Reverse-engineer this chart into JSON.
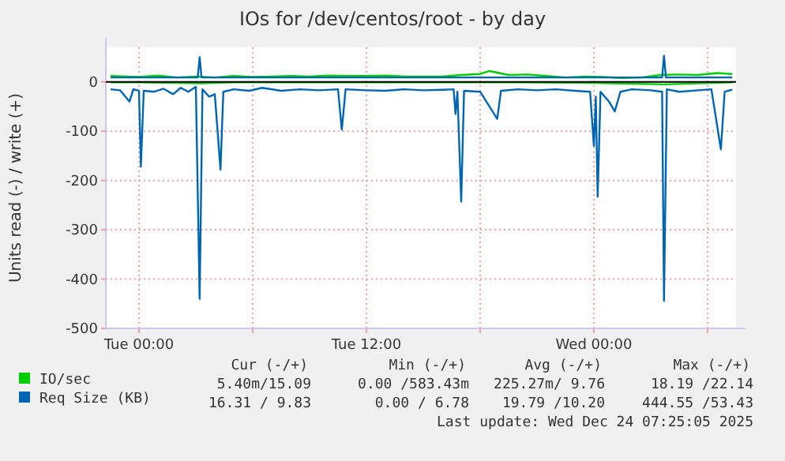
{
  "chart_data": {
    "type": "line",
    "title": "IOs for /dev/centos/root - by day",
    "ylabel": "Units read (-) / write (+)",
    "xlim": [
      "2025-12-22T22:15",
      "2025-12-24T07:30"
    ],
    "xticks": [
      {
        "value": "2025-12-23T00:00",
        "label": "Tue 00:00"
      },
      {
        "value": "2025-12-23T06:00",
        "label": null
      },
      {
        "value": "2025-12-23T12:00",
        "label": "Tue 12:00"
      },
      {
        "value": "2025-12-23T18:00",
        "label": null
      },
      {
        "value": "2025-12-24T00:00",
        "label": "Wed 00:00"
      },
      {
        "value": "2025-12-24T06:00",
        "label": null
      }
    ],
    "ylim": [
      -500,
      70
    ],
    "yticks": [
      -500,
      -400,
      -300,
      -200,
      -100,
      0
    ],
    "grid": true,
    "legend": "bottom",
    "marker": "none",
    "line_style": "solid",
    "ref_lines": [
      {
        "axis": "y",
        "value": 0,
        "color": "#000000"
      }
    ],
    "series": [
      {
        "color": "#00cc00",
        "x": [
          "2025-12-22T22:30",
          "2025-12-23T00:00",
          "2025-12-23T03:12",
          "2025-12-23T05:00",
          "2025-12-23T08:00",
          "2025-12-23T12:00",
          "2025-12-23T16:00",
          "2025-12-23T20:00",
          "2025-12-24T00:00",
          "2025-12-24T03:42",
          "2025-12-24T07:18"
        ],
        "values": [
          -1,
          -1,
          -3,
          -1,
          -1,
          -1,
          -1,
          -1,
          -2,
          -5,
          -1
        ]
      },
      {
        "name": "IO/sec",
        "color": "#00cc00",
        "x": [
          "2025-12-22T22:30",
          "2025-12-23T00:00",
          "2025-12-23T01:00",
          "2025-12-23T02:00",
          "2025-12-23T03:00",
          "2025-12-23T04:00",
          "2025-12-23T05:00",
          "2025-12-23T06:00",
          "2025-12-23T07:00",
          "2025-12-23T08:00",
          "2025-12-23T09:00",
          "2025-12-23T10:00",
          "2025-12-23T11:00",
          "2025-12-23T12:00",
          "2025-12-23T13:00",
          "2025-12-23T14:00",
          "2025-12-23T15:00",
          "2025-12-23T16:00",
          "2025-12-23T17:00",
          "2025-12-23T18:00",
          "2025-12-23T18:30",
          "2025-12-23T19:30",
          "2025-12-23T20:30",
          "2025-12-23T21:30",
          "2025-12-23T22:30",
          "2025-12-23T23:30",
          "2025-12-24T00:30",
          "2025-12-24T01:30",
          "2025-12-24T02:30",
          "2025-12-24T03:30",
          "2025-12-24T04:30",
          "2025-12-24T05:30",
          "2025-12-24T06:30",
          "2025-12-24T07:18"
        ],
        "values": [
          12,
          10,
          13,
          9,
          11,
          9,
          12,
          10,
          11,
          12,
          11,
          13,
          12,
          12,
          13,
          11,
          11,
          11,
          14,
          16,
          22,
          14,
          15,
          12,
          9,
          11,
          10,
          8,
          9,
          14,
          15,
          14,
          18,
          16
        ]
      },
      {
        "color": "#0066b3",
        "x": [
          "2025-12-22T22:30",
          "2025-12-22T23:00",
          "2025-12-22T23:30",
          "2025-12-22T23:42",
          "2025-12-23T00:00",
          "2025-12-23T00:06",
          "2025-12-23T00:15",
          "2025-12-23T00:48",
          "2025-12-23T01:18",
          "2025-12-23T01:48",
          "2025-12-23T02:12",
          "2025-12-23T02:36",
          "2025-12-23T03:00",
          "2025-12-23T03:12",
          "2025-12-23T03:21",
          "2025-12-23T03:42",
          "2025-12-23T04:00",
          "2025-12-23T04:18",
          "2025-12-23T04:27",
          "2025-12-23T05:00",
          "2025-12-23T05:48",
          "2025-12-23T06:30",
          "2025-12-23T07:30",
          "2025-12-23T08:30",
          "2025-12-23T09:30",
          "2025-12-23T10:30",
          "2025-12-23T10:42",
          "2025-12-23T10:54",
          "2025-12-23T12:00",
          "2025-12-23T13:00",
          "2025-12-23T14:00",
          "2025-12-23T15:00",
          "2025-12-23T16:00",
          "2025-12-23T16:36",
          "2025-12-23T16:42",
          "2025-12-23T16:48",
          "2025-12-23T17:00",
          "2025-12-23T17:09",
          "2025-12-23T18:00",
          "2025-12-23T18:54",
          "2025-12-23T19:06",
          "2025-12-23T20:00",
          "2025-12-23T21:00",
          "2025-12-23T22:00",
          "2025-12-23T23:00",
          "2025-12-23T23:48",
          "2025-12-24T00:00",
          "2025-12-24T00:06",
          "2025-12-24T00:12",
          "2025-12-24T00:21",
          "2025-12-24T00:48",
          "2025-12-24T01:06",
          "2025-12-24T01:24",
          "2025-12-24T02:00",
          "2025-12-24T03:00",
          "2025-12-24T03:36",
          "2025-12-24T03:42",
          "2025-12-24T03:51",
          "2025-12-24T04:30",
          "2025-12-24T05:30",
          "2025-12-24T06:12",
          "2025-12-24T06:42",
          "2025-12-24T06:54",
          "2025-12-24T07:18"
        ],
        "values": [
          -15,
          -17,
          -40,
          -15,
          -18,
          -172,
          -18,
          -20,
          -14,
          -25,
          -12,
          -20,
          -10,
          -440,
          -15,
          -30,
          -25,
          -178,
          -20,
          -15,
          -18,
          -12,
          -18,
          -15,
          -17,
          -15,
          -97,
          -15,
          -17,
          -18,
          -15,
          -17,
          -16,
          -15,
          -65,
          -20,
          -243,
          -18,
          -20,
          -75,
          -18,
          -15,
          -17,
          -15,
          -18,
          -20,
          -130,
          -30,
          -233,
          -20,
          -40,
          -60,
          -20,
          -15,
          -17,
          -20,
          -444,
          -15,
          -20,
          -17,
          -15,
          -137,
          -20,
          -16
        ]
      },
      {
        "name": "Req Size (KB)",
        "color": "#0066b3",
        "x": [
          "2025-12-22T22:30",
          "2025-12-23T03:06",
          "2025-12-23T03:12",
          "2025-12-23T03:18",
          "2025-12-23T10:00",
          "2025-12-23T20:00",
          "2025-12-24T03:36",
          "2025-12-24T03:42",
          "2025-12-24T03:48",
          "2025-12-24T07:18"
        ],
        "values": [
          9,
          9,
          50,
          9,
          9,
          9,
          9,
          53,
          9,
          9
        ]
      }
    ],
    "annotations": [
      "Cur (-/+)",
      "Min (-/+)",
      "Avg (-/+)",
      "Max (-/+)",
      "5.40m/15.09",
      "0.00 /583.43m",
      "225.27m/ 9.76",
      "18.19 /22.14",
      "16.31 / 9.83",
      "0.00 / 6.78",
      "19.79 /10.20",
      "444.55 /53.43",
      "Last update: Wed Dec 24 07:25:05 2025"
    ]
  }
}
